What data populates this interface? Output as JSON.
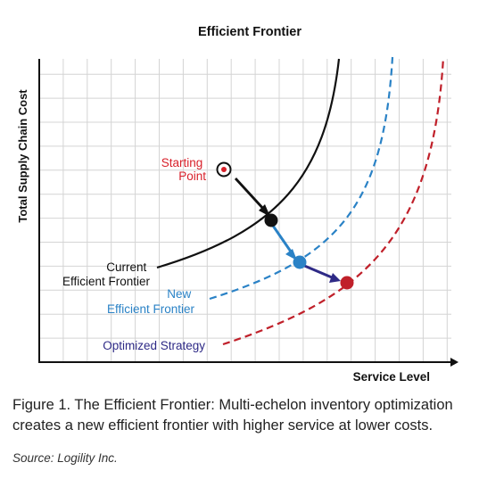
{
  "chart": {
    "title": "Efficient Frontier",
    "xlabel": "Service Level",
    "ylabel": "Total Supply Chain Cost",
    "labels": {
      "starting_point": [
        "Starting",
        "Point"
      ],
      "current": [
        "Current",
        "Efficient Frontier"
      ],
      "new": [
        "New",
        "Efficient Frontier"
      ],
      "optimized": "Optimized Strategy"
    },
    "colors": {
      "current": "#111111",
      "new": "#2a82c6",
      "optimized": "#c0202a",
      "starting": "#d8202a",
      "strategy": "#2e2a86"
    }
  },
  "caption": {
    "figure_label": "Figure 1",
    "text": ". The Efficient Frontier: Multi-echelon inventory optimization creates a new efficient frontier with higher service at lower costs."
  },
  "source": "Source: Logility Inc."
}
